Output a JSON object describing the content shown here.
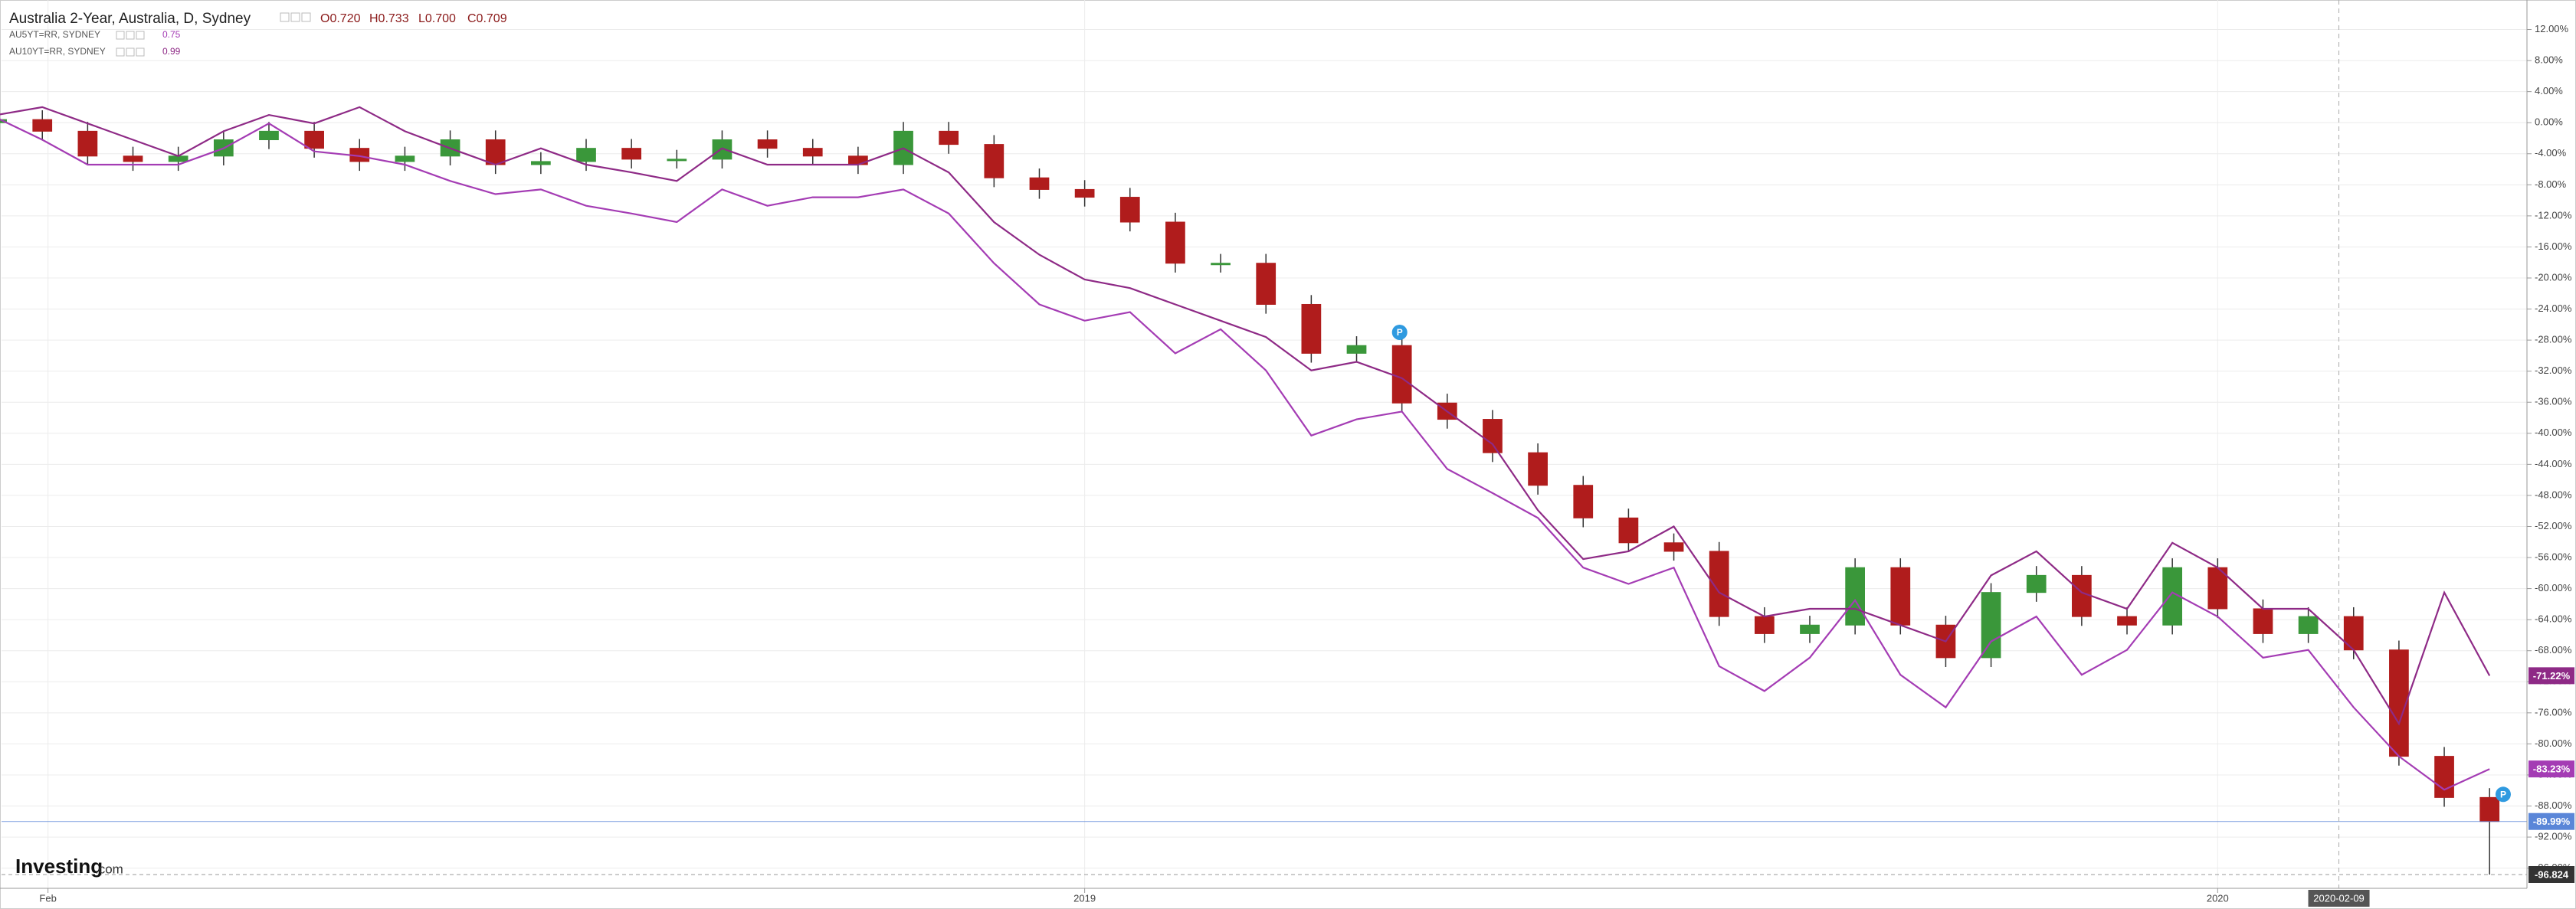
{
  "chart_data": {
    "type": "candlestick",
    "title": "Australia 2-Year, Australia, D, Sydney",
    "ohlc_labels": [
      "O0.720",
      "H0.733",
      "L0.700",
      "C0.709"
    ],
    "logo": [
      "Investing",
      ".com"
    ],
    "x": [
      2018.04,
      2018.08,
      2018.12,
      2018.16,
      2018.2,
      2018.24,
      2018.28,
      2018.32,
      2018.36,
      2018.4,
      2018.44,
      2018.48,
      2018.52,
      2018.56,
      2018.6,
      2018.64,
      2018.68,
      2018.72,
      2018.76,
      2018.8,
      2018.84,
      2018.88,
      2018.92,
      2018.96,
      2019.0,
      2019.04,
      2019.08,
      2019.12,
      2019.16,
      2019.2,
      2019.24,
      2019.28,
      2019.32,
      2019.36,
      2019.4,
      2019.44,
      2019.48,
      2019.52,
      2019.56,
      2019.6,
      2019.64,
      2019.68,
      2019.72,
      2019.76,
      2019.8,
      2019.84,
      2019.88,
      2019.92,
      2019.96,
      2020.0,
      2020.04,
      2020.08,
      2020.12,
      2020.16,
      2020.2,
      2020.24
    ],
    "open": [
      0.0,
      0.4,
      -1.1,
      -4.3,
      -5.0,
      -4.3,
      -2.2,
      -1.1,
      -3.3,
      -5.0,
      -4.3,
      -2.2,
      -5.4,
      -5.0,
      -3.3,
      -4.7,
      -4.7,
      -2.2,
      -3.3,
      -4.3,
      -5.4,
      -1.1,
      -2.8,
      -7.1,
      -8.6,
      -9.6,
      -12.8,
      -18.1,
      -18.1,
      -23.4,
      -29.7,
      -28.7,
      -36.1,
      -38.2,
      -42.5,
      -46.7,
      -50.9,
      -54.1,
      -55.2,
      -63.6,
      -65.8,
      -64.7,
      -57.3,
      -64.7,
      -68.9,
      -60.5,
      -58.3,
      -63.6,
      -64.7,
      -57.3,
      -62.6,
      -65.8,
      -63.6,
      -67.9,
      -81.6,
      -86.9
    ],
    "high": [
      1.6,
      1.6,
      0.1,
      -3.1,
      -3.1,
      -1.0,
      0.1,
      0.1,
      -2.1,
      -3.1,
      -1.0,
      -1.0,
      -3.8,
      -2.1,
      -2.1,
      -3.5,
      -1.0,
      -1.0,
      -2.1,
      -3.1,
      0.1,
      0.1,
      -1.6,
      -5.9,
      -7.4,
      -8.4,
      -11.6,
      -16.9,
      -16.9,
      -22.2,
      -27.5,
      -27.5,
      -34.9,
      -37.0,
      -41.3,
      -45.5,
      -49.7,
      -52.9,
      -54.0,
      -62.4,
      -63.5,
      -56.1,
      -56.1,
      -63.5,
      -59.3,
      -57.1,
      -57.1,
      -62.4,
      -56.1,
      -56.1,
      -61.4,
      -62.4,
      -62.4,
      -66.7,
      -80.4,
      -85.7
    ],
    "low": [
      -1.2,
      -2.3,
      -5.5,
      -6.2,
      -6.2,
      -5.5,
      -3.4,
      -4.5,
      -6.2,
      -6.2,
      -5.5,
      -6.6,
      -6.6,
      -6.2,
      -5.9,
      -5.9,
      -5.9,
      -4.5,
      -5.5,
      -6.6,
      -6.6,
      -4.0,
      -8.3,
      -9.8,
      -10.8,
      -14.0,
      -19.3,
      -19.3,
      -24.6,
      -30.9,
      -30.9,
      -37.3,
      -39.4,
      -43.7,
      -47.9,
      -52.1,
      -55.3,
      -56.4,
      -64.8,
      -67.0,
      -67.0,
      -65.9,
      -65.9,
      -70.1,
      -70.1,
      -61.7,
      -64.8,
      -65.9,
      -65.9,
      -63.8,
      -67.0,
      -67.0,
      -69.1,
      -82.8,
      -88.1,
      -96.824
    ],
    "close": [
      0.4,
      -1.1,
      -4.3,
      -5.0,
      -4.3,
      -2.2,
      -1.1,
      -3.3,
      -5.0,
      -4.3,
      -2.2,
      -5.4,
      -5.0,
      -3.3,
      -4.7,
      -4.7,
      -2.2,
      -3.3,
      -4.3,
      -5.4,
      -1.1,
      -2.8,
      -7.1,
      -8.6,
      -9.6,
      -12.8,
      -18.1,
      -18.1,
      -23.4,
      -29.7,
      -28.7,
      -36.1,
      -38.2,
      -42.5,
      -46.7,
      -50.9,
      -54.1,
      -55.2,
      -63.6,
      -65.8,
      -64.7,
      -57.3,
      -64.7,
      -68.9,
      -60.5,
      -58.3,
      -63.6,
      -64.7,
      -57.3,
      -62.6,
      -65.8,
      -63.6,
      -67.9,
      -81.6,
      -86.9,
      -89.99
    ],
    "up_color": "#3a973a",
    "down_color": "#b01c1c",
    "last_label": "-89.99%",
    "last_color": "#5a86d8",
    "low_label": "-96.824",
    "series": [
      {
        "name": "AU5YT=RR, SYDNEY",
        "legend_value": "0.75",
        "color": "#a43cb4",
        "last_label": "-83.23%",
        "values": [
          0.6,
          -2.2,
          -5.4,
          -5.4,
          -5.4,
          -3.3,
          -0.1,
          -3.7,
          -4.3,
          -5.4,
          -7.5,
          -9.2,
          -8.6,
          -10.7,
          -11.7,
          -12.8,
          -8.6,
          -10.7,
          -9.6,
          -9.6,
          -8.6,
          -11.7,
          -18.1,
          -23.4,
          -25.5,
          -24.4,
          -29.7,
          -26.6,
          -31.9,
          -40.3,
          -38.2,
          -37.2,
          -44.6,
          -47.7,
          -50.9,
          -57.3,
          -59.4,
          -57.3,
          -70.0,
          -73.2,
          -68.9,
          -61.5,
          -71.1,
          -75.3,
          -66.8,
          -63.6,
          -71.1,
          -67.9,
          -60.5,
          -63.6,
          -68.9,
          -67.9,
          -75.3,
          -81.6,
          -85.9,
          -83.23
        ]
      },
      {
        "name": "AU10YT=RR, SYDNEY",
        "legend_value": "0.99",
        "color": "#8e2a86",
        "last_label": "-71.22%",
        "values": [
          1.0,
          2.0,
          -0.1,
          -2.2,
          -4.3,
          -1.1,
          1.0,
          -0.1,
          2.0,
          -1.1,
          -3.3,
          -5.4,
          -3.3,
          -5.4,
          -6.4,
          -7.5,
          -3.3,
          -5.4,
          -5.4,
          -5.4,
          -3.3,
          -6.4,
          -12.8,
          -17.0,
          -20.2,
          -21.3,
          -23.4,
          -25.5,
          -27.6,
          -31.9,
          -30.8,
          -32.9,
          -37.2,
          -41.4,
          -49.9,
          -56.2,
          -55.2,
          -52.0,
          -60.5,
          -63.6,
          -62.6,
          -62.6,
          -64.7,
          -66.8,
          -58.3,
          -55.2,
          -60.5,
          -62.6,
          -54.1,
          -57.3,
          -62.6,
          -62.6,
          -67.9,
          -77.4,
          -60.5,
          -71.22
        ]
      }
    ],
    "markers": [
      {
        "x": 2019.278,
        "y": -27.0,
        "label": "P"
      },
      {
        "x": 2020.252,
        "y": -86.5,
        "label": "P"
      }
    ],
    "crosshair": {
      "x": 2020.107,
      "label": "2020-02-09"
    },
    "xlim": [
      2018.044,
      2020.273
    ],
    "xticks": [
      {
        "value": 2018.085,
        "label": "Feb"
      },
      2019,
      2020
    ],
    "ylim": [
      -98.6,
      15.8
    ],
    "yticks": [
      {
        "value": 12,
        "label": "12.00%"
      },
      {
        "value": 8,
        "label": "8.00%"
      },
      {
        "value": 4,
        "label": "4.00%"
      },
      {
        "value": 0,
        "label": "0.00%"
      },
      {
        "value": -4,
        "label": "-4.00%"
      },
      {
        "value": -8,
        "label": "-8.00%"
      },
      {
        "value": -12,
        "label": "-12.00%"
      },
      {
        "value": -16,
        "label": "-16.00%"
      },
      {
        "value": -20,
        "label": "-20.00%"
      },
      {
        "value": -24,
        "label": "-24.00%"
      },
      {
        "value": -28,
        "label": "-28.00%"
      },
      {
        "value": -32,
        "label": "-32.00%"
      },
      {
        "value": -36,
        "label": "-36.00%"
      },
      {
        "value": -40,
        "label": "-40.00%"
      },
      {
        "value": -44,
        "label": "-44.00%"
      },
      {
        "value": -48,
        "label": "-48.00%"
      },
      {
        "value": -52,
        "label": "-52.00%"
      },
      {
        "value": -56,
        "label": "-56.00%"
      },
      {
        "value": -60,
        "label": "-60.00%"
      },
      {
        "value": -64,
        "label": "-64.00%"
      },
      {
        "value": -68,
        "label": "-68.00%"
      },
      {
        "value": -72,
        "label": "-72.00%"
      },
      {
        "value": -76,
        "label": "-76.00%"
      },
      {
        "value": -80,
        "label": "-80.00%"
      },
      {
        "value": -84,
        "label": "-84.00%"
      },
      {
        "value": -88,
        "label": "-88.00%"
      },
      {
        "value": -92,
        "label": "-92.00%"
      },
      {
        "value": -96,
        "label": "-96.00%"
      }
    ],
    "grid": true
  }
}
